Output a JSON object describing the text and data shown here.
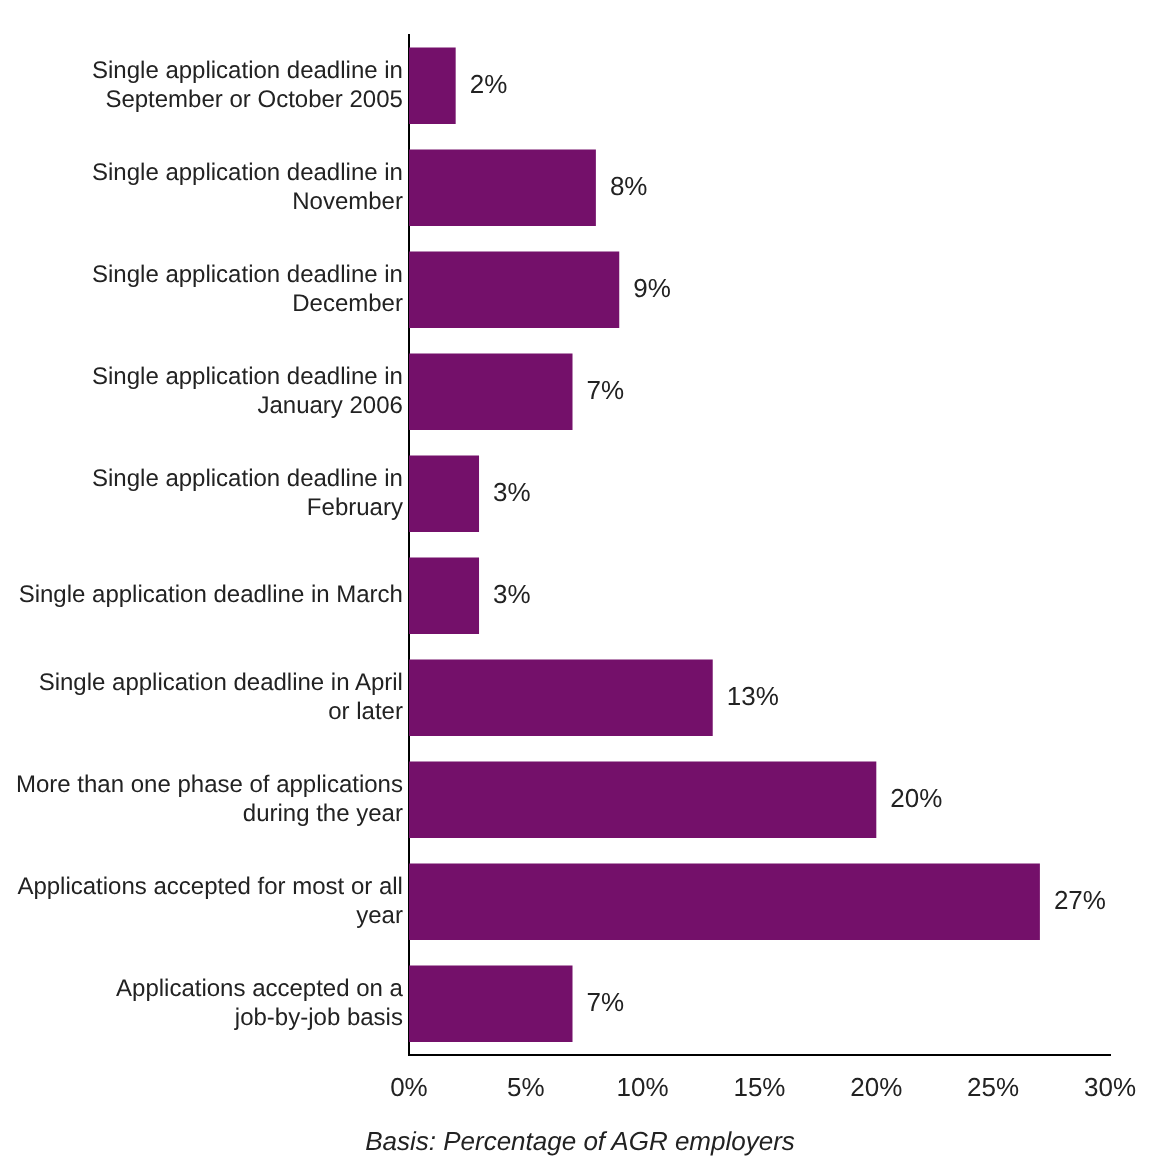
{
  "chart_data": {
    "type": "bar",
    "orientation": "horizontal",
    "categories": [
      "Single application deadline in September or October 2005",
      "Single application deadline in November",
      "Single application deadline in December",
      "Single application deadline in January 2006",
      "Single application deadline in February",
      "Single application deadline in March",
      "Single application deadline in April or later",
      "More than one phase of applications during the year",
      "Applications accepted for most or all year",
      "Applications accepted on a job-by-job basis"
    ],
    "values": [
      2,
      8,
      9,
      7,
      3,
      3,
      13,
      20,
      27,
      7
    ],
    "value_labels": [
      "2%",
      "8%",
      "9%",
      "7%",
      "3%",
      "3%",
      "13%",
      "20%",
      "27%",
      "7%"
    ],
    "color": "#74106a",
    "xlim": [
      0,
      30
    ],
    "xticks": [
      {
        "value": 0,
        "label": "0%"
      },
      {
        "value": 5,
        "label": "5%"
      },
      {
        "value": 10,
        "label": "10%"
      },
      {
        "value": 15,
        "label": "15%"
      },
      {
        "value": 20,
        "label": "20%"
      },
      {
        "value": 25,
        "label": "25%"
      },
      {
        "value": 30,
        "label": "30%"
      }
    ],
    "grid": false,
    "legend": false,
    "annotations": [
      "Basis: Percentage of AGR employers"
    ]
  }
}
